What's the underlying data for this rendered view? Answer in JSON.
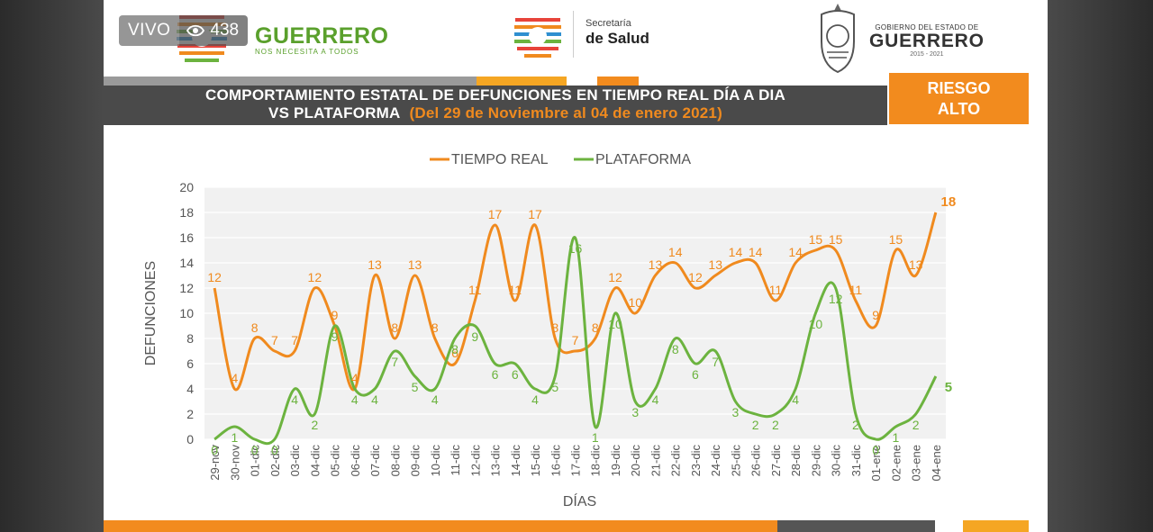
{
  "live": {
    "label": "VIVO",
    "viewers": "438"
  },
  "header": {
    "brand_name": "GUERRERO",
    "brand_slogan": "NOS NECESITA A TODOS",
    "secretaria_small": "Secretaría",
    "secretaria_big": "de Salud",
    "gov_small": "GOBIERNO DEL ESTADO DE",
    "gov_big": "GUERRERO",
    "gov_years": "2015 - 2021"
  },
  "banner": {
    "title_line1": "COMPORTAMIENTO ESTATAL DE DEFUNCIONES EN TIEMPO REAL DÍA A DIA",
    "title_line2": "VS PLATAFORMA",
    "date_range": "(Del 29 de Noviembre al 04 de enero 2021)",
    "risk_line1": "RIESGO",
    "risk_line2": "ALTO"
  },
  "colors": {
    "orange": "#f08a1e",
    "green": "#6cb33f",
    "dark": "#4a4a4a"
  },
  "chart_data": {
    "type": "line",
    "title": "",
    "xlabel": "DÍAS",
    "ylabel": "DEFUNCIONES",
    "ylim": [
      0,
      20
    ],
    "yticks": [
      0,
      2,
      4,
      6,
      8,
      10,
      12,
      14,
      16,
      18,
      20
    ],
    "grid": true,
    "legend_position": "top-center",
    "categories": [
      "29-nov",
      "30-nov",
      "01-dic",
      "02-dic",
      "03-dic",
      "04-dic",
      "05-dic",
      "06-dic",
      "07-dic",
      "08-dic",
      "09-dic",
      "10-dic",
      "11-dic",
      "12-dic",
      "13-dic",
      "14-dic",
      "15-dic",
      "16-dic",
      "17-dic",
      "18-dic",
      "19-dic",
      "20-dic",
      "21-dic",
      "22-dic",
      "23-dic",
      "24-dic",
      "25-dic",
      "26-dic",
      "27-dic",
      "28-dic",
      "29-dic",
      "30-dic",
      "31-dic",
      "01-ene",
      "02-ene",
      "03-ene",
      "04-ene"
    ],
    "series": [
      {
        "name": "TIEMPO REAL",
        "color": "#f08a1e",
        "values": [
          12,
          4,
          8,
          7,
          7,
          12,
          9,
          4,
          13,
          8,
          13,
          8,
          6,
          11,
          17,
          11,
          17,
          8,
          7,
          8,
          12,
          10,
          13,
          14,
          12,
          13,
          14,
          14,
          11,
          14,
          15,
          15,
          11,
          9,
          15,
          13,
          18
        ]
      },
      {
        "name": "PLATAFORMA",
        "color": "#6cb33f",
        "values": [
          0,
          1,
          0,
          0,
          4,
          2,
          9,
          4,
          4,
          7,
          5,
          4,
          8,
          9,
          6,
          6,
          4,
          5,
          16,
          1,
          10,
          3,
          4,
          8,
          6,
          7,
          3,
          2,
          2,
          4,
          10,
          12,
          2,
          0,
          1,
          2,
          5
        ]
      }
    ]
  }
}
